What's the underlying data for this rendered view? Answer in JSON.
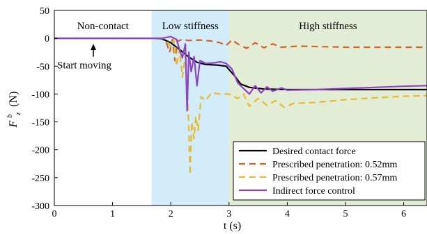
{
  "chart_data": {
    "type": "line",
    "xlabel": "t (s)",
    "ylabel_main": "F",
    "ylabel_sup": "b",
    "ylabel_sub": "z",
    "ylabel_unit": "(N)",
    "xlim": [
      0,
      6.4
    ],
    "ylim": [
      -300,
      50
    ],
    "xticks": [
      0,
      1,
      2,
      3,
      4,
      5,
      6
    ],
    "yticks": [
      50,
      0,
      -50,
      -100,
      -150,
      -200,
      -250,
      -300
    ],
    "regions": [
      {
        "label": "Non-contact",
        "x0": 0,
        "x1": 1.67,
        "color": "#ffffff"
      },
      {
        "label": "Low stiffness",
        "x0": 1.67,
        "x1": 3.0,
        "color": "#d3ecf9"
      },
      {
        "label": "High stiffness",
        "x0": 3.0,
        "x1": 6.4,
        "color": "#e3ecd4"
      }
    ],
    "annotation": {
      "text": "Start moving",
      "x": 0.67,
      "y_from": -33,
      "y_to": -10
    },
    "legend_position": "bottom-right",
    "series": [
      {
        "name": "Desired contact force",
        "color": "#000000",
        "dash": "solid",
        "points": [
          [
            0,
            0
          ],
          [
            1.75,
            0
          ],
          [
            1.85,
            -1
          ],
          [
            2.0,
            -8
          ],
          [
            2.15,
            -20
          ],
          [
            2.3,
            -33
          ],
          [
            2.45,
            -43
          ],
          [
            2.6,
            -47
          ],
          [
            2.8,
            -48
          ],
          [
            2.95,
            -50
          ],
          [
            3.1,
            -68
          ],
          [
            3.2,
            -82
          ],
          [
            3.35,
            -88
          ],
          [
            3.6,
            -91
          ],
          [
            4.0,
            -92
          ],
          [
            5.0,
            -92
          ],
          [
            6.4,
            -92
          ]
        ]
      },
      {
        "name": "Prescribed penetration: 0.52mm",
        "color": "#d4622a",
        "dash": "dashed",
        "points": [
          [
            0,
            0
          ],
          [
            1.9,
            0
          ],
          [
            1.98,
            -25
          ],
          [
            2.03,
            -2
          ],
          [
            2.07,
            -40
          ],
          [
            2.12,
            -5
          ],
          [
            2.2,
            -2
          ],
          [
            2.3,
            -4
          ],
          [
            2.5,
            -3
          ],
          [
            2.7,
            -5
          ],
          [
            2.85,
            -8
          ],
          [
            2.95,
            -13
          ],
          [
            3.05,
            -3
          ],
          [
            3.15,
            -10
          ],
          [
            3.3,
            -18
          ],
          [
            3.45,
            -8
          ],
          [
            3.6,
            -17
          ],
          [
            3.75,
            -10
          ],
          [
            3.9,
            -16
          ],
          [
            4.2,
            -14
          ],
          [
            5.0,
            -16
          ],
          [
            6.4,
            -16
          ]
        ]
      },
      {
        "name": "Prescribed penetration: 0.57mm",
        "color": "#e6bb2e",
        "dash": "dashed",
        "points": [
          [
            0,
            0
          ],
          [
            1.9,
            0
          ],
          [
            2.0,
            -15
          ],
          [
            2.05,
            -3
          ],
          [
            2.1,
            -50
          ],
          [
            2.15,
            -20
          ],
          [
            2.2,
            -70
          ],
          [
            2.25,
            -30
          ],
          [
            2.3,
            -130
          ],
          [
            2.33,
            -245
          ],
          [
            2.36,
            -150
          ],
          [
            2.4,
            -180
          ],
          [
            2.43,
            -140
          ],
          [
            2.47,
            -165
          ],
          [
            2.52,
            -105
          ],
          [
            2.6,
            -112
          ],
          [
            2.7,
            -98
          ],
          [
            2.85,
            -100
          ],
          [
            3.0,
            -100
          ],
          [
            3.15,
            -108
          ],
          [
            3.25,
            -100
          ],
          [
            3.35,
            -122
          ],
          [
            3.5,
            -108
          ],
          [
            3.65,
            -120
          ],
          [
            3.8,
            -112
          ],
          [
            3.95,
            -124
          ],
          [
            4.1,
            -117
          ],
          [
            4.5,
            -115
          ],
          [
            5.0,
            -110
          ],
          [
            5.5,
            -107
          ],
          [
            6.0,
            -104
          ],
          [
            6.4,
            -103
          ]
        ]
      },
      {
        "name": "Indirect force control",
        "color": "#8e44c4",
        "dash": "solid",
        "points": [
          [
            0,
            0
          ],
          [
            1.85,
            0
          ],
          [
            2.0,
            3
          ],
          [
            2.1,
            -2
          ],
          [
            2.15,
            -20
          ],
          [
            2.2,
            -35
          ],
          [
            2.25,
            -10
          ],
          [
            2.28,
            -130
          ],
          [
            2.31,
            -25
          ],
          [
            2.35,
            -60
          ],
          [
            2.4,
            -33
          ],
          [
            2.45,
            -85
          ],
          [
            2.5,
            -40
          ],
          [
            2.6,
            -45
          ],
          [
            2.75,
            -44
          ],
          [
            2.85,
            -42
          ],
          [
            2.95,
            -45
          ],
          [
            3.05,
            -55
          ],
          [
            3.15,
            -80
          ],
          [
            3.25,
            -90
          ],
          [
            3.35,
            -100
          ],
          [
            3.45,
            -85
          ],
          [
            3.55,
            -98
          ],
          [
            3.65,
            -87
          ],
          [
            3.75,
            -95
          ],
          [
            3.9,
            -89
          ],
          [
            4.0,
            -93
          ],
          [
            4.5,
            -92
          ],
          [
            5.0,
            -90
          ],
          [
            5.5,
            -88
          ],
          [
            6.0,
            -86
          ],
          [
            6.4,
            -85
          ]
        ]
      }
    ]
  }
}
